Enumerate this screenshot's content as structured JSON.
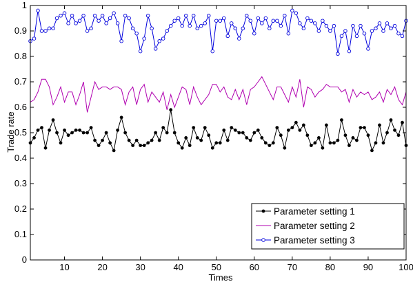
{
  "chart_data": {
    "type": "line",
    "title": "",
    "xlabel": "Times",
    "ylabel": "Trade rate",
    "xlim": [
      1,
      100
    ],
    "ylim": [
      0,
      1
    ],
    "xticks": [
      10,
      20,
      30,
      40,
      50,
      60,
      70,
      80,
      90,
      100
    ],
    "yticks": [
      0,
      0.1,
      0.2,
      0.3,
      0.4,
      0.5,
      0.6,
      0.7,
      0.8,
      0.9,
      1
    ],
    "ytick_labels": [
      "0",
      "0.1",
      "0.2",
      "0.3",
      "0.4",
      "0.5",
      "0.6",
      "0.7",
      "0.8",
      "0.9",
      "1"
    ],
    "grid": false,
    "legend_position": "bottom-right",
    "x": [
      1,
      2,
      3,
      4,
      5,
      6,
      7,
      8,
      9,
      10,
      11,
      12,
      13,
      14,
      15,
      16,
      17,
      18,
      19,
      20,
      21,
      22,
      23,
      24,
      25,
      26,
      27,
      28,
      29,
      30,
      31,
      32,
      33,
      34,
      35,
      36,
      37,
      38,
      39,
      40,
      41,
      42,
      43,
      44,
      45,
      46,
      47,
      48,
      49,
      50,
      51,
      52,
      53,
      54,
      55,
      56,
      57,
      58,
      59,
      60,
      61,
      62,
      63,
      64,
      65,
      66,
      67,
      68,
      69,
      70,
      71,
      72,
      73,
      74,
      75,
      76,
      77,
      78,
      79,
      80,
      81,
      82,
      83,
      84,
      85,
      86,
      87,
      88,
      89,
      90,
      91,
      92,
      93,
      94,
      95,
      96,
      97,
      98,
      99,
      100
    ],
    "series": [
      {
        "name": "Parameter setting 1",
        "color": "#000000",
        "marker": "dot",
        "values": [
          0.46,
          0.48,
          0.51,
          0.52,
          0.44,
          0.51,
          0.55,
          0.5,
          0.46,
          0.51,
          0.49,
          0.5,
          0.51,
          0.51,
          0.5,
          0.5,
          0.52,
          0.47,
          0.45,
          0.47,
          0.5,
          0.46,
          0.43,
          0.51,
          0.56,
          0.5,
          0.47,
          0.45,
          0.47,
          0.45,
          0.45,
          0.46,
          0.47,
          0.5,
          0.47,
          0.52,
          0.5,
          0.59,
          0.5,
          0.46,
          0.44,
          0.48,
          0.45,
          0.52,
          0.48,
          0.47,
          0.52,
          0.49,
          0.44,
          0.46,
          0.46,
          0.51,
          0.47,
          0.52,
          0.51,
          0.5,
          0.5,
          0.48,
          0.47,
          0.5,
          0.51,
          0.48,
          0.46,
          0.45,
          0.46,
          0.52,
          0.49,
          0.44,
          0.51,
          0.52,
          0.54,
          0.51,
          0.53,
          0.49,
          0.45,
          0.46,
          0.48,
          0.44,
          0.53,
          0.46,
          0.46,
          0.47,
          0.55,
          0.49,
          0.45,
          0.48,
          0.47,
          0.52,
          0.52,
          0.49,
          0.43,
          0.46,
          0.53,
          0.46,
          0.5,
          0.55,
          0.51,
          0.49,
          0.54,
          0.45
        ]
      },
      {
        "name": "Parameter setting 2",
        "color": "#b000b0",
        "marker": "none",
        "values": [
          0.62,
          0.63,
          0.66,
          0.71,
          0.71,
          0.68,
          0.61,
          0.64,
          0.68,
          0.62,
          0.66,
          0.66,
          0.61,
          0.65,
          0.7,
          0.58,
          0.64,
          0.7,
          0.67,
          0.68,
          0.68,
          0.67,
          0.68,
          0.68,
          0.67,
          0.61,
          0.66,
          0.68,
          0.61,
          0.67,
          0.69,
          0.62,
          0.66,
          0.64,
          0.62,
          0.66,
          0.59,
          0.65,
          0.6,
          0.64,
          0.68,
          0.67,
          0.61,
          0.68,
          0.64,
          0.61,
          0.63,
          0.65,
          0.69,
          0.69,
          0.66,
          0.68,
          0.64,
          0.63,
          0.67,
          0.63,
          0.67,
          0.61,
          0.67,
          0.68,
          0.7,
          0.72,
          0.69,
          0.66,
          0.63,
          0.68,
          0.68,
          0.65,
          0.62,
          0.68,
          0.64,
          0.71,
          0.6,
          0.68,
          0.67,
          0.64,
          0.66,
          0.67,
          0.69,
          0.68,
          0.68,
          0.68,
          0.66,
          0.67,
          0.62,
          0.67,
          0.64,
          0.66,
          0.65,
          0.66,
          0.63,
          0.64,
          0.66,
          0.62,
          0.67,
          0.65,
          0.68,
          0.63,
          0.61,
          0.66
        ]
      },
      {
        "name": "Parameter setting 3",
        "color": "#0000dd",
        "marker": "circle",
        "values": [
          0.86,
          0.87,
          0.98,
          0.9,
          0.9,
          0.91,
          0.91,
          0.95,
          0.96,
          0.97,
          0.93,
          0.96,
          0.93,
          0.94,
          0.96,
          0.9,
          0.91,
          0.96,
          0.94,
          0.96,
          0.93,
          0.95,
          0.97,
          0.93,
          0.86,
          0.96,
          0.95,
          0.91,
          0.89,
          0.82,
          0.87,
          0.96,
          0.91,
          0.83,
          0.86,
          0.87,
          0.9,
          0.92,
          0.94,
          0.95,
          0.92,
          0.96,
          0.92,
          0.96,
          0.91,
          0.92,
          0.93,
          0.96,
          0.82,
          0.94,
          0.94,
          0.95,
          0.88,
          0.93,
          0.91,
          0.87,
          0.91,
          0.96,
          0.94,
          0.89,
          0.95,
          0.93,
          0.95,
          0.91,
          0.94,
          0.94,
          0.92,
          0.96,
          0.89,
          0.98,
          0.97,
          0.93,
          0.91,
          0.95,
          0.94,
          0.93,
          0.9,
          0.94,
          0.92,
          0.9,
          0.92,
          0.81,
          0.88,
          0.9,
          0.82,
          0.92,
          0.88,
          0.92,
          0.89,
          0.83,
          0.9,
          0.91,
          0.93,
          0.9,
          0.93,
          0.91,
          0.92,
          0.89,
          0.88,
          0.94
        ]
      }
    ]
  }
}
